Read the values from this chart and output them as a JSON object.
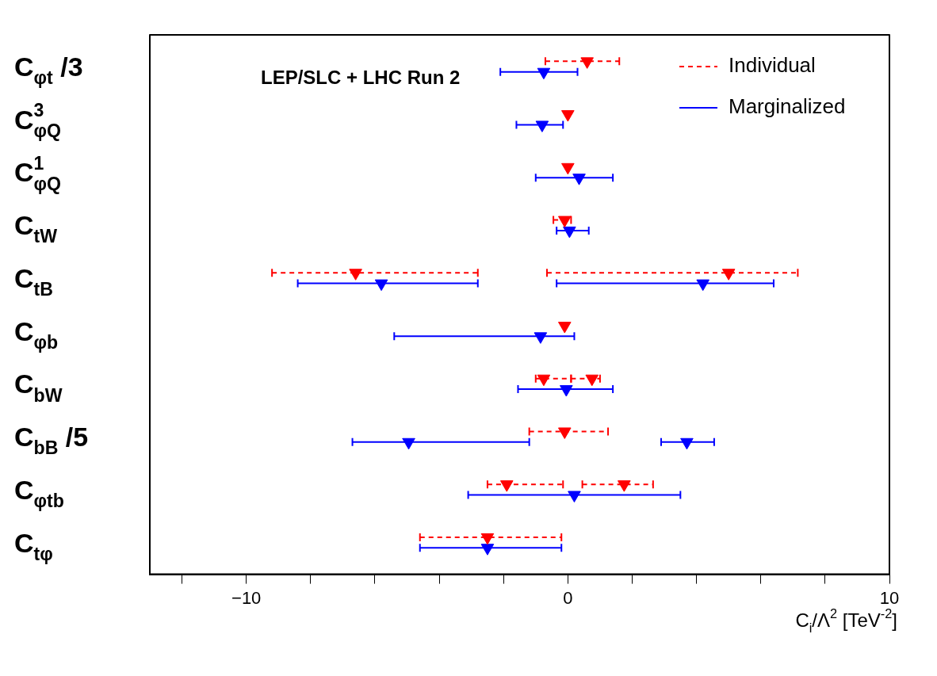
{
  "chart_data": {
    "type": "scatter",
    "orientation": "horizontal",
    "title": "LEP/SLC + LHC Run 2",
    "xlabel": "C$_{i}$/Λ$^{2}$ [TeV$^{-2}$]",
    "categories": [
      "C$_{φt}$ /3",
      "C$^{3}$$_{φQ}$",
      "C$^{1}$$_{φQ}$",
      "C$_{tW}$",
      "C$_{tB}$",
      "C$_{φb}$",
      "C$_{bW}$",
      "C$_{bB}$ /5",
      "C$_{φtb}$",
      "C$_{tφ}$"
    ],
    "xlim": [
      -13,
      10
    ],
    "xticks": [
      {
        "value": -12,
        "label": null
      },
      -10,
      {
        "value": -8,
        "label": null
      },
      {
        "value": -6,
        "label": null
      },
      {
        "value": -4,
        "label": null
      },
      {
        "value": -2,
        "label": null
      },
      0,
      {
        "value": 2,
        "label": null
      },
      {
        "value": 4,
        "label": null
      },
      {
        "value": 6,
        "label": null
      },
      {
        "value": 8,
        "label": null
      },
      10
    ],
    "marker": "triangle",
    "legend": "top right",
    "series": [
      {
        "name": "Individual",
        "color": "#ff0000",
        "line_style": "dashed",
        "values": [
          0.6,
          0.0,
          0.0,
          -0.1,
          -6.6,
          -0.1,
          -0.75,
          -0.1,
          -1.9,
          -2.5
        ],
        "errors": [
          [
            -0.7,
            1.6
          ],
          null,
          null,
          [
            -0.45,
            0.1
          ],
          [
            -9.2,
            -2.8
          ],
          null,
          [
            -1.0,
            0.1
          ],
          [
            -1.2,
            1.25
          ],
          [
            -2.5,
            -0.15
          ],
          [
            -4.6,
            -0.2
          ]
        ]
      },
      {
        "color": "#ff0000",
        "line_style": "dashed",
        "values": [
          null,
          null,
          null,
          null,
          5.0,
          null,
          0.75,
          null,
          1.75,
          null
        ],
        "errors": [
          null,
          null,
          null,
          null,
          [
            -0.65,
            7.15
          ],
          null,
          [
            0.1,
            1.0
          ],
          null,
          [
            0.45,
            2.65
          ],
          null
        ]
      },
      {
        "name": "Marginalized",
        "color": "#0000ff",
        "line_style": "solid",
        "values": [
          -0.75,
          -0.8,
          0.35,
          0.05,
          -5.8,
          -0.85,
          -0.05,
          -4.95,
          0.2,
          -2.5
        ],
        "errors": [
          [
            -2.1,
            0.3
          ],
          [
            -1.6,
            -0.15
          ],
          [
            -1.0,
            1.4
          ],
          [
            -0.35,
            0.65
          ],
          [
            -8.4,
            -2.8
          ],
          [
            -5.4,
            0.2
          ],
          [
            -1.55,
            1.4
          ],
          [
            -6.7,
            -1.2
          ],
          [
            -3.1,
            3.5
          ],
          [
            -4.6,
            -0.2
          ]
        ]
      },
      {
        "color": "#0000ff",
        "line_style": "solid",
        "values": [
          null,
          null,
          null,
          null,
          4.2,
          null,
          null,
          3.7,
          null,
          null
        ],
        "errors": [
          null,
          null,
          null,
          null,
          [
            -0.35,
            6.4
          ],
          null,
          null,
          [
            2.9,
            4.55
          ],
          null,
          null
        ]
      }
    ]
  }
}
